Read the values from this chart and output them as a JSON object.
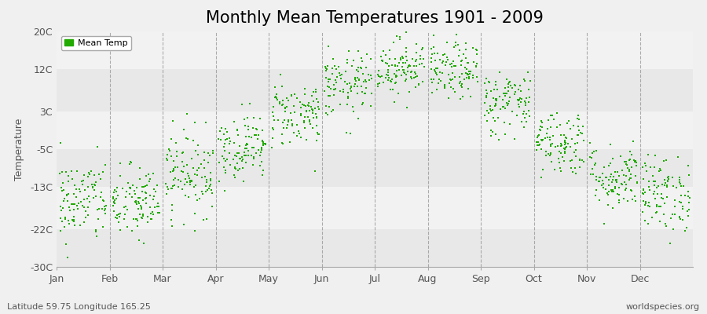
{
  "title": "Monthly Mean Temperatures 1901 - 2009",
  "ylabel": "Temperature",
  "xlabel_bottom_left": "Latitude 59.75 Longitude 165.25",
  "xlabel_bottom_right": "worldspecies.org",
  "yticks": [
    -30,
    -22,
    -13,
    -5,
    3,
    12,
    20
  ],
  "ytick_labels": [
    "-30C",
    "-22C",
    "-13C",
    "-5C",
    "3C",
    "12C",
    "20C"
  ],
  "months": [
    "Jan",
    "Feb",
    "Mar",
    "Apr",
    "May",
    "Jun",
    "Jul",
    "Aug",
    "Sep",
    "Oct",
    "Nov",
    "Dec"
  ],
  "dot_color": "#22aa00",
  "bg_color": "#f0f0f0",
  "band_colors": [
    "#e8e8e8",
    "#f2f2f2"
  ],
  "mean_temps": [
    -16.0,
    -16.5,
    -10.0,
    -4.5,
    2.5,
    8.5,
    12.5,
    11.5,
    5.0,
    -3.5,
    -11.0,
    -14.5
  ],
  "spread": [
    4.5,
    4.0,
    4.5,
    3.5,
    3.5,
    3.5,
    3.0,
    3.0,
    3.5,
    3.5,
    3.5,
    4.0
  ],
  "n_years": 109,
  "marker_size": 3,
  "legend_label": "Mean Temp",
  "title_fontsize": 15,
  "label_fontsize": 9,
  "tick_fontsize": 9,
  "dashed_line_color": "#999999",
  "spine_color": "#aaaaaa",
  "tick_label_color": "#555555",
  "ylabel_color": "#555555"
}
